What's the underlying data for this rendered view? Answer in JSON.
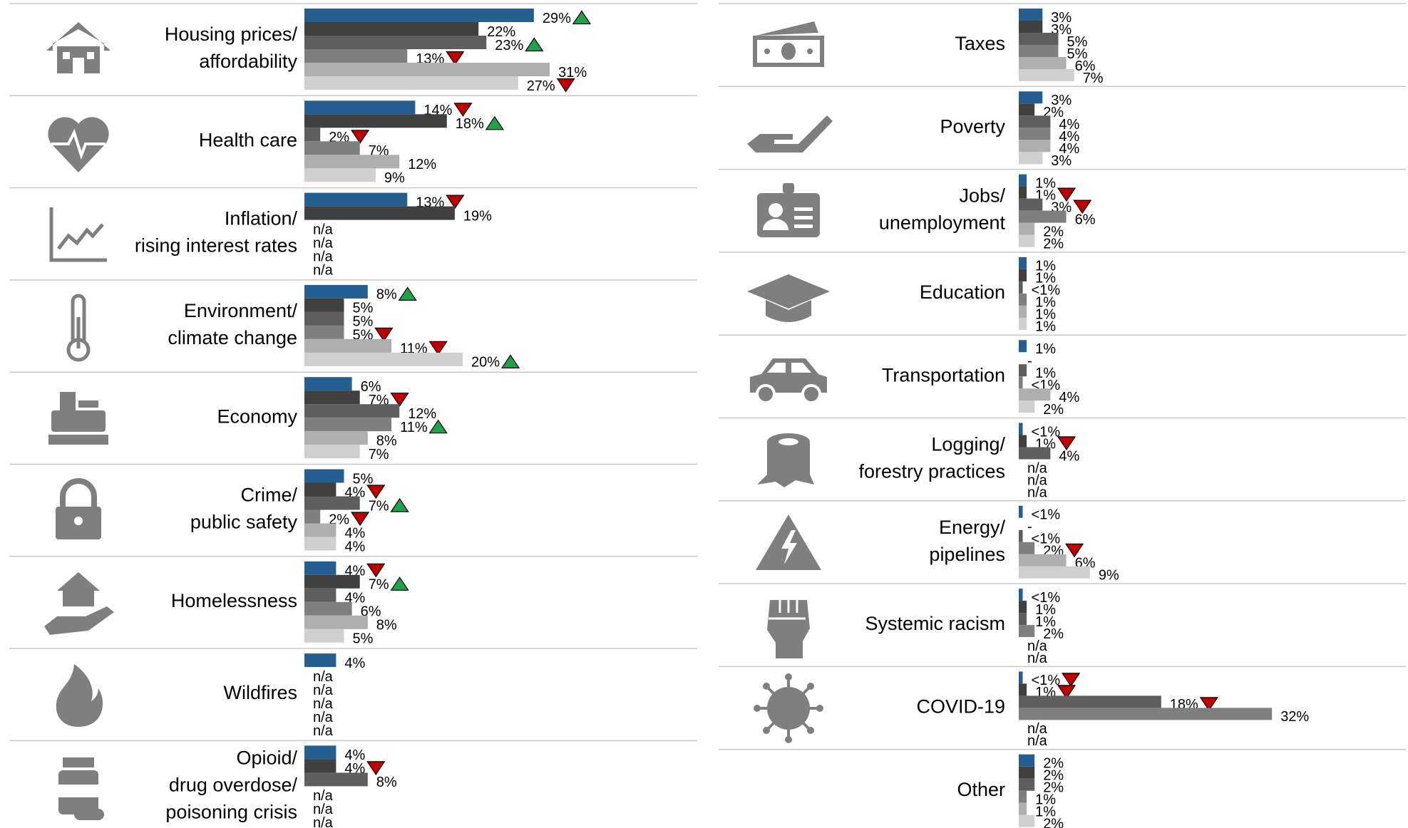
{
  "chart_data": {
    "type": "bar",
    "categories": [
      [
        "Housing prices/",
        "affordability"
      ],
      [
        "Health care"
      ],
      [
        "Inflation/",
        "rising interest rates"
      ],
      [
        "Environment/",
        "climate change"
      ],
      [
        "Economy"
      ],
      [
        "Crime/",
        "public safety"
      ],
      [
        "Homelessness"
      ],
      [
        "Wildfires"
      ],
      [
        "Opioid/",
        "drug overdose/",
        "poisoning crisis"
      ],
      [
        "Taxes"
      ],
      [
        "Poverty"
      ],
      [
        "Jobs/",
        "unemployment"
      ],
      [
        "Education"
      ],
      [
        "Transportation"
      ],
      [
        "Logging/",
        "forestry practices"
      ],
      [
        "Energy/",
        "pipelines"
      ],
      [
        "Systemic racism"
      ],
      [
        "COVID-19"
      ],
      [
        "Other"
      ]
    ],
    "up_color": "#1fa34a",
    "down_color": "#c00000",
    "series": [
      {
        "color": "#255e91",
        "values": [
          29,
          14,
          13,
          8,
          6,
          5,
          4,
          4,
          4,
          3,
          3,
          1,
          1,
          1,
          0.5,
          0.5,
          0.5,
          0.5,
          2
        ],
        "value_labels": [
          "29%",
          "14%",
          "13%",
          "8%",
          "6%",
          "5%",
          "4%",
          "4%",
          "4%",
          "3%",
          "3%",
          "1%",
          "1%",
          "1%",
          "<1%",
          "<1%",
          "<1%",
          "<1%",
          "2%"
        ],
        "changes": [
          "up",
          "down",
          "down",
          "up",
          null,
          null,
          "down",
          null,
          null,
          null,
          null,
          null,
          null,
          null,
          null,
          null,
          null,
          "down",
          null
        ]
      },
      {
        "color": "#404040",
        "values": [
          22,
          18,
          19,
          5,
          7,
          4,
          7,
          null,
          4,
          3,
          2,
          1,
          1,
          0,
          1,
          0,
          1,
          1,
          2
        ],
        "value_labels": [
          "22%",
          "18%",
          "19%",
          "5%",
          "7%",
          "4%",
          "7%",
          "n/a",
          "4%",
          "3%",
          "2%",
          "1%",
          "1%",
          "-",
          "1%",
          "-",
          "1%",
          "1%",
          "2%"
        ],
        "changes": [
          null,
          "up",
          null,
          null,
          "down",
          "down",
          "up",
          null,
          "down",
          null,
          null,
          "down",
          null,
          null,
          "down",
          null,
          null,
          "down",
          null
        ]
      },
      {
        "color": "#5e5e5e",
        "values": [
          23,
          2,
          null,
          5,
          12,
          7,
          4,
          null,
          8,
          5,
          4,
          3,
          0.5,
          1,
          4,
          0.5,
          1,
          18,
          2
        ],
        "value_labels": [
          "23%",
          "2%",
          "n/a",
          "5%",
          "12%",
          "7%",
          "4%",
          "n/a",
          "8%",
          "5%",
          "4%",
          "3%",
          "<1%",
          "1%",
          "4%",
          "<1%",
          "1%",
          "18%",
          "2%"
        ],
        "changes": [
          "up",
          "down",
          null,
          null,
          null,
          "up",
          null,
          null,
          null,
          null,
          null,
          "down",
          null,
          null,
          null,
          null,
          null,
          "down",
          null
        ]
      },
      {
        "color": "#7f7f7f",
        "values": [
          13,
          7,
          null,
          5,
          11,
          2,
          6,
          null,
          null,
          5,
          4,
          6,
          1,
          0.5,
          null,
          2,
          2,
          32,
          1
        ],
        "value_labels": [
          "13%",
          "7%",
          "n/a",
          "5%",
          "11%",
          "2%",
          "6%",
          "n/a",
          "n/a",
          "5%",
          "4%",
          "6%",
          "1%",
          "<1%",
          "n/a",
          "2%",
          "2%",
          "32%",
          "1%"
        ],
        "changes": [
          "down",
          null,
          null,
          "down",
          "up",
          "down",
          null,
          null,
          null,
          null,
          null,
          null,
          null,
          null,
          null,
          "down",
          null,
          null,
          null
        ]
      },
      {
        "color": "#afafaf",
        "values": [
          31,
          12,
          null,
          11,
          8,
          4,
          8,
          null,
          null,
          6,
          4,
          2,
          1,
          4,
          null,
          6,
          null,
          null,
          1
        ],
        "value_labels": [
          "31%",
          "12%",
          "n/a",
          "11%",
          "8%",
          "4%",
          "8%",
          "n/a",
          "n/a",
          "6%",
          "4%",
          "2%",
          "1%",
          "4%",
          "n/a",
          "6%",
          "n/a",
          "n/a",
          "1%"
        ],
        "changes": [
          null,
          null,
          null,
          "down",
          null,
          null,
          null,
          null,
          null,
          null,
          null,
          null,
          null,
          null,
          null,
          null,
          null,
          null,
          null
        ]
      },
      {
        "color": "#d0d0d0",
        "values": [
          27,
          9,
          null,
          20,
          7,
          4,
          5,
          null,
          null,
          7,
          3,
          2,
          1,
          2,
          null,
          9,
          null,
          null,
          2
        ],
        "value_labels": [
          "27%",
          "9%",
          "n/a",
          "20%",
          "7%",
          "4%",
          "5%",
          "n/a",
          "n/a",
          "7%",
          "3%",
          "2%",
          "1%",
          "2%",
          "n/a",
          "9%",
          "n/a",
          "n/a",
          "2%"
        ],
        "changes": [
          "down",
          null,
          null,
          "up",
          null,
          null,
          null,
          null,
          null,
          null,
          null,
          null,
          null,
          null,
          null,
          null,
          null,
          null,
          null
        ]
      }
    ]
  }
}
